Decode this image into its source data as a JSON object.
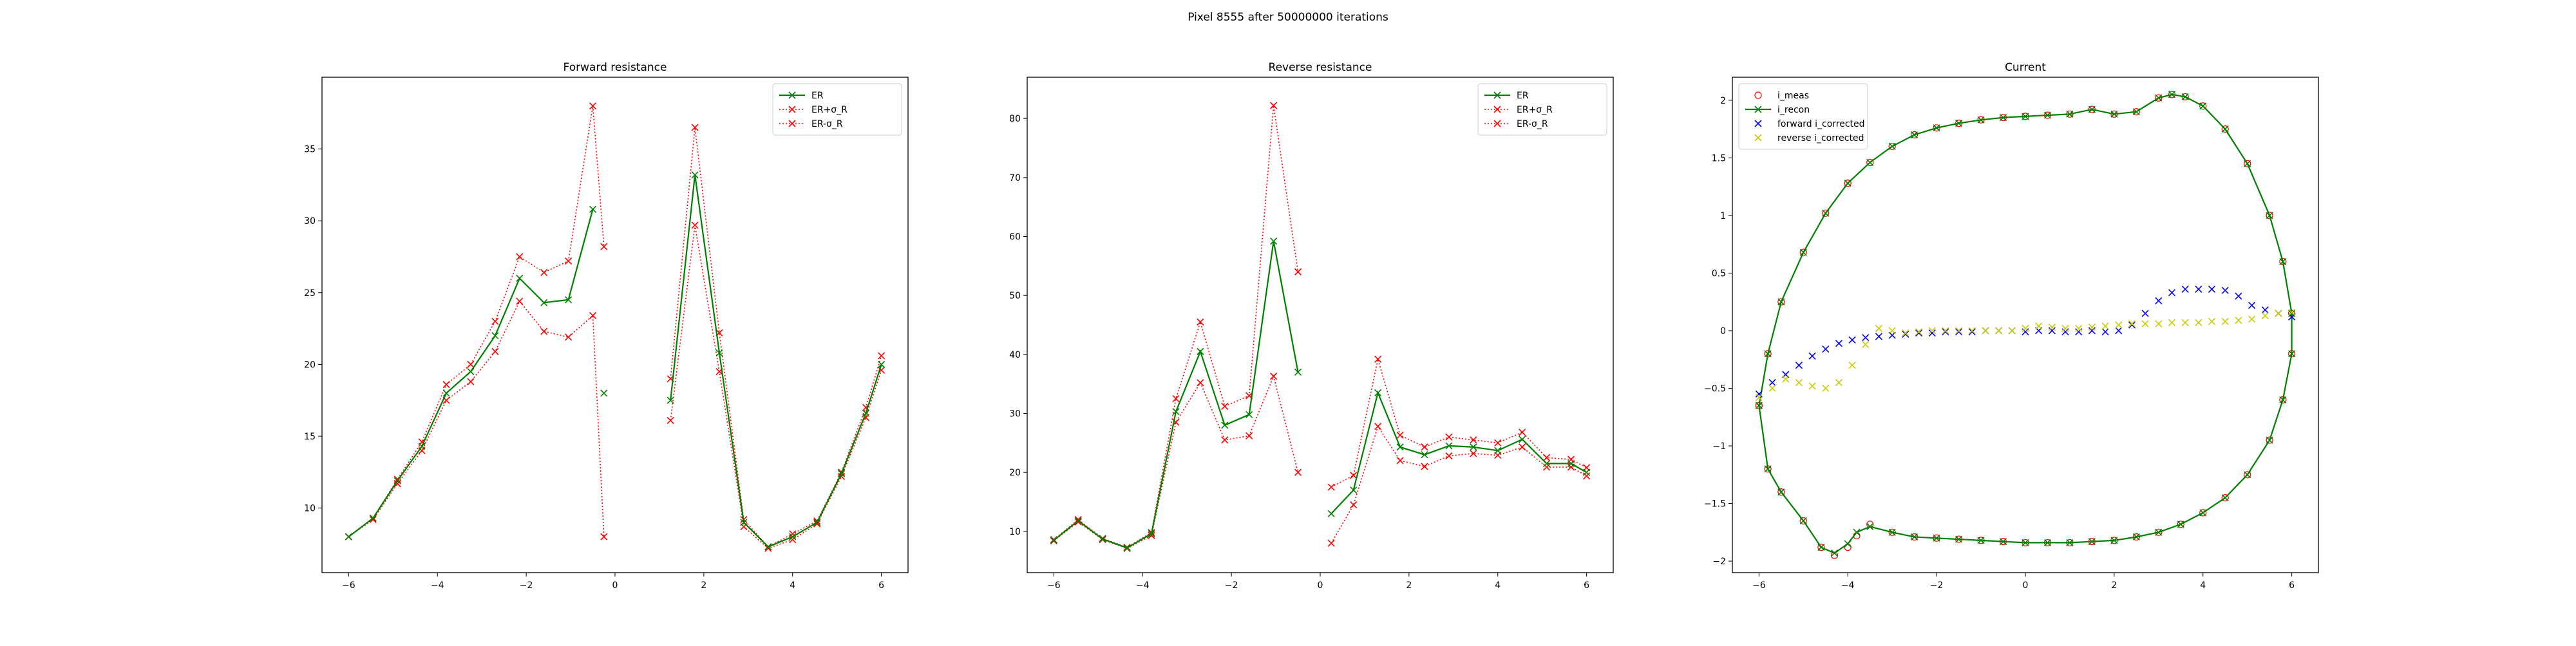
{
  "figure": {
    "suptitle": "Pixel 8555 after 50000000 iterations"
  },
  "chart_data": [
    {
      "type": "line",
      "title": "Forward resistance",
      "xlabel": "",
      "ylabel": "",
      "xlim": [
        -6.6,
        6.6
      ],
      "ylim": [
        5.5,
        40
      ],
      "xticks": [
        -6,
        -4,
        -2,
        0,
        2,
        4,
        6
      ],
      "yticks": [
        10,
        15,
        20,
        25,
        30,
        35
      ],
      "grid": false,
      "legend_position": "upper right",
      "series": [
        {
          "name": "ER",
          "color": "#008000",
          "style": "solid",
          "marker": "x",
          "segments": [
            {
              "x": [
                -6,
                -5.45,
                -4.9,
                -4.35,
                -3.8,
                -3.25,
                -2.7,
                -2.15,
                -1.6,
                -1.05,
                -0.5
              ],
              "y": [
                8.0,
                9.3,
                11.9,
                14.3,
                18.0,
                19.5,
                22.0,
                26.0,
                24.3,
                24.5,
                30.8
              ]
            },
            {
              "x": [
                -0.25
              ],
              "y": [
                18.0
              ]
            },
            {
              "x": [
                1.25,
                1.8,
                2.35,
                2.9,
                3.45,
                4.0,
                4.55,
                5.1,
                5.65,
                6.0
              ],
              "y": [
                17.5,
                33.2,
                20.8,
                9.0,
                7.3,
                8.0,
                9.0,
                12.4,
                16.6,
                20.0
              ]
            }
          ]
        },
        {
          "name": "ER+σ_R",
          "color": "#ff0000",
          "style": "dotted",
          "marker": "x",
          "segments": [
            {
              "x": [
                -6,
                -5.45,
                -4.9,
                -4.35,
                -3.8,
                -3.25,
                -2.7,
                -2.15,
                -1.6,
                -1.05,
                -0.5,
                -0.25
              ],
              "y": [
                8.0,
                9.3,
                12.0,
                14.6,
                18.6,
                20.0,
                23.0,
                27.5,
                26.4,
                27.2,
                38.0,
                28.2
              ]
            },
            {
              "x": [
                1.25,
                1.8,
                2.35,
                2.9,
                3.45,
                4.0,
                4.55,
                5.1,
                5.65,
                6.0
              ],
              "y": [
                19.0,
                36.5,
                22.2,
                9.2,
                7.3,
                8.2,
                9.1,
                12.5,
                17.0,
                20.6
              ]
            }
          ]
        },
        {
          "name": "ER-σ_R",
          "color": "#ff0000",
          "style": "dotted",
          "marker": "x",
          "segments": [
            {
              "x": [
                -6,
                -5.45,
                -4.9,
                -4.35,
                -3.8,
                -3.25,
                -2.7,
                -2.15,
                -1.6,
                -1.05,
                -0.5,
                -0.25
              ],
              "y": [
                8.0,
                9.2,
                11.7,
                14.0,
                17.5,
                18.8,
                20.9,
                24.4,
                22.3,
                21.9,
                23.4,
                8.0
              ]
            },
            {
              "x": [
                1.25,
                1.8,
                2.35,
                2.9,
                3.45,
                4.0,
                4.55,
                5.1,
                5.65,
                6.0
              ],
              "y": [
                16.1,
                29.7,
                19.5,
                8.7,
                7.2,
                7.8,
                8.9,
                12.2,
                16.3,
                19.6
              ]
            }
          ]
        }
      ]
    },
    {
      "type": "line",
      "title": "Reverse resistance",
      "xlabel": "",
      "ylabel": "",
      "xlim": [
        -6.6,
        6.6
      ],
      "ylim": [
        3,
        87
      ],
      "xticks": [
        -6,
        -4,
        -2,
        0,
        2,
        4,
        6
      ],
      "yticks": [
        10,
        20,
        30,
        40,
        50,
        60,
        70,
        80
      ],
      "grid": false,
      "legend_position": "upper right",
      "series": [
        {
          "name": "ER",
          "color": "#008000",
          "style": "solid",
          "marker": "x",
          "segments": [
            {
              "x": [
                -6,
                -5.45,
                -4.9,
                -4.35,
                -3.8,
                -3.25,
                -2.7,
                -2.15,
                -1.6,
                -1.05,
                -0.5
              ],
              "y": [
                8.5,
                11.8,
                8.7,
                7.2,
                9.6,
                30.3,
                40.5,
                28.0,
                29.8,
                59.2,
                37.0
              ]
            },
            {
              "x": [
                0.25,
                0.75,
                1.3,
                1.8,
                2.35,
                2.9,
                3.45,
                4.0,
                4.55,
                5.1,
                5.65,
                6.0
              ],
              "y": [
                13.0,
                17.0,
                33.5,
                24.3,
                23.0,
                24.5,
                24.3,
                23.7,
                25.6,
                21.5,
                21.5,
                20.0
              ]
            }
          ]
        },
        {
          "name": "ER+σ_R",
          "color": "#ff0000",
          "style": "dotted",
          "marker": "x",
          "segments": [
            {
              "x": [
                -6,
                -5.45,
                -4.9,
                -4.35,
                -3.8,
                -3.25,
                -2.7,
                -2.15,
                -1.6,
                -1.05,
                -0.5
              ],
              "y": [
                8.6,
                12.0,
                8.8,
                7.3,
                9.8,
                32.5,
                45.5,
                31.2,
                33.0,
                82.2,
                54.0
              ]
            },
            {
              "x": [
                0.25,
                0.75,
                1.3,
                1.8,
                2.35,
                2.9,
                3.45,
                4.0,
                4.55,
                5.1,
                5.65,
                6.0
              ],
              "y": [
                17.5,
                19.5,
                39.2,
                26.3,
                24.3,
                26.0,
                25.5,
                25.0,
                26.8,
                22.5,
                22.2,
                20.8
              ]
            }
          ]
        },
        {
          "name": "ER-σ_R",
          "color": "#ff0000",
          "style": "dotted",
          "marker": "x",
          "segments": [
            {
              "x": [
                -6,
                -5.45,
                -4.9,
                -4.35,
                -3.8,
                -3.25,
                -2.7,
                -2.15,
                -1.6,
                -1.05,
                -0.5
              ],
              "y": [
                8.4,
                11.6,
                8.6,
                7.1,
                9.3,
                28.5,
                35.2,
                25.5,
                26.2,
                36.3,
                20.0
              ]
            },
            {
              "x": [
                0.25,
                0.75,
                1.3,
                1.8,
                2.35,
                2.9,
                3.45,
                4.0,
                4.55,
                5.1,
                5.65,
                6.0
              ],
              "y": [
                8.0,
                14.5,
                27.8,
                22.0,
                21.0,
                22.8,
                23.2,
                22.9,
                24.3,
                20.9,
                20.9,
                19.4
              ]
            }
          ]
        }
      ]
    },
    {
      "type": "line",
      "title": "Current",
      "xlabel": "",
      "ylabel": "",
      "xlim": [
        -6.6,
        6.6
      ],
      "ylim": [
        -2.1,
        2.2
      ],
      "xticks": [
        -6,
        -4,
        -2,
        0,
        2,
        4,
        6
      ],
      "yticks": [
        -2.0,
        -1.5,
        -1.0,
        -0.5,
        0.0,
        0.5,
        1.0,
        1.5,
        2.0
      ],
      "grid": false,
      "legend_position": "upper left",
      "series": [
        {
          "name": "i_meas",
          "color": "#ff0000",
          "style": "none",
          "marker": "o",
          "loop": true,
          "x": [
            -6.0,
            -5.8,
            -5.5,
            -5.0,
            -4.5,
            -4.0,
            -3.5,
            -3.0,
            -2.5,
            -2.0,
            -1.5,
            -1.0,
            -0.5,
            0.0,
            0.5,
            1.0,
            1.5,
            2.0,
            2.5,
            3.0,
            3.3,
            3.6,
            4.0,
            4.5,
            5.0,
            5.5,
            5.8,
            6.0,
            6.0,
            5.8,
            5.5,
            5.0,
            4.5,
            4.0,
            3.5,
            3.0,
            2.5,
            2.0,
            1.5,
            1.0,
            0.5,
            0.0,
            -0.5,
            -1.0,
            -1.5,
            -2.0,
            -2.5,
            -3.0,
            -3.5,
            -3.8,
            -4.0,
            -4.3,
            -4.6,
            -5.0,
            -5.5,
            -5.8,
            -6.0
          ],
          "y": [
            -0.65,
            -0.2,
            0.25,
            0.68,
            1.02,
            1.28,
            1.46,
            1.6,
            1.7,
            1.76,
            1.8,
            1.83,
            1.85,
            1.86,
            1.87,
            1.88,
            1.92,
            1.88,
            1.9,
            2.02,
            2.05,
            2.03,
            1.95,
            1.75,
            1.45,
            1.0,
            0.6,
            0.15,
            -0.2,
            -0.6,
            -0.95,
            -1.25,
            -1.45,
            -1.58,
            -1.68,
            -1.75,
            -1.79,
            -1.82,
            -1.83,
            -1.84,
            -1.84,
            -1.84,
            -1.83,
            -1.82,
            -1.81,
            -1.8,
            -1.79,
            -1.75,
            -1.68,
            -1.78,
            -1.88,
            -1.95,
            -1.88,
            -1.65,
            -1.4,
            -1.2,
            -0.65
          ]
        },
        {
          "name": "i_recon",
          "color": "#008000",
          "style": "solid",
          "marker": "x",
          "loop": true,
          "x": [
            -6.0,
            -5.8,
            -5.5,
            -5.0,
            -4.5,
            -4.0,
            -3.5,
            -3.0,
            -2.5,
            -2.0,
            -1.5,
            -1.0,
            -0.5,
            0.0,
            0.5,
            1.0,
            1.5,
            2.0,
            2.5,
            3.0,
            3.3,
            3.6,
            4.0,
            4.5,
            5.0,
            5.5,
            5.8,
            6.0,
            6.0,
            5.8,
            5.5,
            5.0,
            4.5,
            4.0,
            3.5,
            3.0,
            2.5,
            2.0,
            1.5,
            1.0,
            0.5,
            0.0,
            -0.5,
            -1.0,
            -1.5,
            -2.0,
            -2.5,
            -3.0,
            -3.5,
            -3.8,
            -4.0,
            -4.3,
            -4.6,
            -5.0,
            -5.5,
            -5.8,
            -6.0
          ],
          "y": [
            -0.65,
            -0.2,
            0.25,
            0.68,
            1.02,
            1.28,
            1.46,
            1.6,
            1.7,
            1.76,
            1.8,
            1.83,
            1.85,
            1.86,
            1.87,
            1.88,
            1.92,
            1.88,
            1.9,
            2.02,
            2.05,
            2.03,
            1.95,
            1.75,
            1.45,
            1.0,
            0.6,
            0.15,
            -0.2,
            -0.6,
            -0.95,
            -1.25,
            -1.45,
            -1.58,
            -1.68,
            -1.75,
            -1.79,
            -1.82,
            -1.83,
            -1.84,
            -1.84,
            -1.84,
            -1.83,
            -1.82,
            -1.81,
            -1.8,
            -1.79,
            -1.75,
            -1.7,
            -1.75,
            -1.85,
            -1.93,
            -1.88,
            -1.65,
            -1.4,
            -1.2,
            -0.65
          ]
        },
        {
          "name": "forward i_corrected",
          "color": "#0000ff",
          "style": "none",
          "marker": "x",
          "x": [
            -6.0,
            -5.7,
            -5.4,
            -5.1,
            -4.8,
            -4.5,
            -4.2,
            -3.9,
            -3.6,
            -3.3,
            -3.0,
            -2.7,
            -2.4,
            -2.1,
            -1.8,
            -1.5,
            -1.2,
            -0.9,
            -0.6,
            -0.3,
            0.0,
            0.3,
            0.6,
            0.9,
            1.2,
            1.5,
            1.8,
            2.1,
            2.4,
            2.7,
            3.0,
            3.3,
            3.6,
            3.9,
            4.2,
            4.5,
            4.8,
            5.1,
            5.4,
            5.7,
            6.0
          ],
          "y": [
            -0.55,
            -0.45,
            -0.38,
            -0.3,
            -0.22,
            -0.16,
            -0.11,
            -0.08,
            -0.06,
            -0.05,
            -0.04,
            -0.03,
            -0.02,
            -0.02,
            -0.01,
            -0.01,
            -0.01,
            0.0,
            0.0,
            0.0,
            -0.01,
            0.0,
            0.0,
            -0.01,
            -0.01,
            0.0,
            -0.01,
            0.0,
            0.05,
            0.15,
            0.26,
            0.33,
            0.36,
            0.36,
            0.36,
            0.35,
            0.3,
            0.22,
            0.18,
            0.15,
            0.12
          ]
        },
        {
          "name": "reverse i_corrected",
          "color": "#cccc00",
          "style": "none",
          "marker": "x",
          "x": [
            -6.0,
            -5.7,
            -5.4,
            -5.1,
            -4.8,
            -4.5,
            -4.2,
            -3.9,
            -3.6,
            -3.3,
            -3.0,
            -2.7,
            -2.4,
            -2.1,
            -1.8,
            -1.5,
            -1.2,
            -0.9,
            -0.6,
            -0.3,
            0.0,
            0.3,
            0.6,
            0.9,
            1.2,
            1.5,
            1.8,
            2.1,
            2.4,
            2.7,
            3.0,
            3.3,
            3.6,
            3.9,
            4.2,
            4.5,
            4.8,
            5.1,
            5.4,
            5.7,
            6.0
          ],
          "y": [
            -0.58,
            -0.5,
            -0.42,
            -0.45,
            -0.48,
            -0.5,
            -0.45,
            -0.3,
            -0.12,
            0.02,
            0.0,
            -0.02,
            -0.01,
            0.0,
            0.0,
            0.0,
            0.0,
            0.0,
            0.0,
            0.0,
            0.02,
            0.04,
            0.03,
            0.02,
            0.02,
            0.03,
            0.04,
            0.05,
            0.06,
            0.06,
            0.06,
            0.07,
            0.07,
            0.07,
            0.08,
            0.08,
            0.09,
            0.1,
            0.13,
            0.15,
            0.16
          ]
        }
      ]
    }
  ]
}
